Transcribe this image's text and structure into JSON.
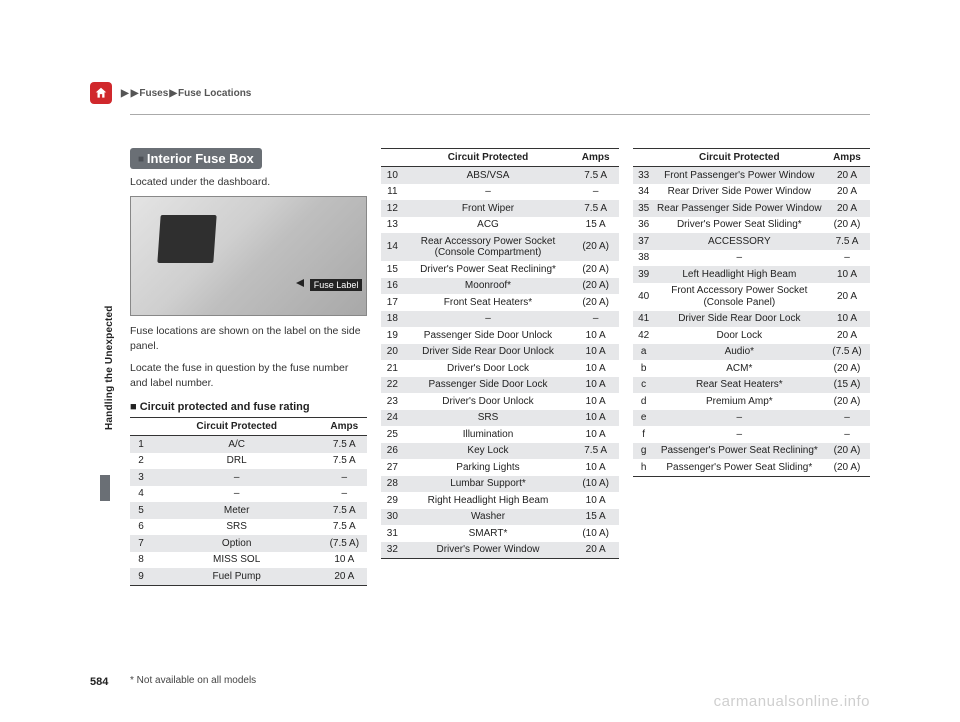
{
  "breadcrumb": {
    "a": "Fuses",
    "b": "Fuse Locations"
  },
  "pageNumber": "584",
  "footnote": "* Not available on all models",
  "watermark": "carmanualsonline.info",
  "sideLabel": "Handling the Unexpected",
  "section": {
    "title": "Interior Fuse Box",
    "located": "Located under the dashboard.",
    "fuseLabel": "Fuse Label",
    "desc1": "Fuse locations are shown on the label on the side panel.",
    "desc2": "Locate the fuse in question by the fuse number and label number.",
    "subheading": "Circuit protected and fuse rating"
  },
  "headers": {
    "circuit": "Circuit Protected",
    "amps": "Amps"
  },
  "table1": [
    {
      "n": "1",
      "c": "A/C",
      "a": "7.5 A"
    },
    {
      "n": "2",
      "c": "DRL",
      "a": "7.5 A"
    },
    {
      "n": "3",
      "c": "–",
      "a": "–"
    },
    {
      "n": "4",
      "c": "–",
      "a": "–"
    },
    {
      "n": "5",
      "c": "Meter",
      "a": "7.5 A"
    },
    {
      "n": "6",
      "c": "SRS",
      "a": "7.5 A"
    },
    {
      "n": "7",
      "c": "Option",
      "a": "(7.5 A)"
    },
    {
      "n": "8",
      "c": "MISS SOL",
      "a": "10 A"
    },
    {
      "n": "9",
      "c": "Fuel Pump",
      "a": "20 A"
    }
  ],
  "table2": [
    {
      "n": "10",
      "c": "ABS/VSA",
      "a": "7.5 A"
    },
    {
      "n": "11",
      "c": "–",
      "a": "–"
    },
    {
      "n": "12",
      "c": "Front Wiper",
      "a": "7.5 A"
    },
    {
      "n": "13",
      "c": "ACG",
      "a": "15 A"
    },
    {
      "n": "14",
      "c": "Rear Accessory Power Socket (Console Compartment)",
      "a": "(20 A)"
    },
    {
      "n": "15",
      "c": "Driver's Power Seat Reclining*",
      "a": "(20 A)"
    },
    {
      "n": "16",
      "c": "Moonroof*",
      "a": "(20 A)"
    },
    {
      "n": "17",
      "c": "Front Seat Heaters*",
      "a": "(20 A)"
    },
    {
      "n": "18",
      "c": "–",
      "a": "–"
    },
    {
      "n": "19",
      "c": "Passenger Side Door Unlock",
      "a": "10 A"
    },
    {
      "n": "20",
      "c": "Driver Side Rear Door Unlock",
      "a": "10 A"
    },
    {
      "n": "21",
      "c": "Driver's Door Lock",
      "a": "10 A"
    },
    {
      "n": "22",
      "c": "Passenger Side Door Lock",
      "a": "10 A"
    },
    {
      "n": "23",
      "c": "Driver's Door Unlock",
      "a": "10 A"
    },
    {
      "n": "24",
      "c": "SRS",
      "a": "10 A"
    },
    {
      "n": "25",
      "c": "Illumination",
      "a": "10 A"
    },
    {
      "n": "26",
      "c": "Key Lock",
      "a": "7.5 A"
    },
    {
      "n": "27",
      "c": "Parking Lights",
      "a": "10 A"
    },
    {
      "n": "28",
      "c": "Lumbar Support*",
      "a": "(10 A)"
    },
    {
      "n": "29",
      "c": "Right Headlight High Beam",
      "a": "10 A"
    },
    {
      "n": "30",
      "c": "Washer",
      "a": "15 A"
    },
    {
      "n": "31",
      "c": "SMART*",
      "a": "(10 A)"
    },
    {
      "n": "32",
      "c": "Driver's Power Window",
      "a": "20 A"
    }
  ],
  "table3": [
    {
      "n": "33",
      "c": "Front Passenger's Power Window",
      "a": "20 A"
    },
    {
      "n": "34",
      "c": "Rear Driver Side Power Window",
      "a": "20 A"
    },
    {
      "n": "35",
      "c": "Rear Passenger Side Power Window",
      "a": "20 A"
    },
    {
      "n": "36",
      "c": "Driver's Power Seat Sliding*",
      "a": "(20 A)"
    },
    {
      "n": "37",
      "c": "ACCESSORY",
      "a": "7.5 A"
    },
    {
      "n": "38",
      "c": "–",
      "a": "–"
    },
    {
      "n": "39",
      "c": "Left Headlight High Beam",
      "a": "10 A"
    },
    {
      "n": "40",
      "c": "Front Accessory Power Socket (Console Panel)",
      "a": "20 A"
    },
    {
      "n": "41",
      "c": "Driver Side Rear Door Lock",
      "a": "10 A"
    },
    {
      "n": "42",
      "c": "Door Lock",
      "a": "20 A"
    },
    {
      "n": "a",
      "c": "Audio*",
      "a": "(7.5 A)"
    },
    {
      "n": "b",
      "c": "ACM*",
      "a": "(20 A)"
    },
    {
      "n": "c",
      "c": "Rear Seat Heaters*",
      "a": "(15 A)"
    },
    {
      "n": "d",
      "c": "Premium Amp*",
      "a": "(20 A)"
    },
    {
      "n": "e",
      "c": "–",
      "a": "–"
    },
    {
      "n": "f",
      "c": "–",
      "a": "–"
    },
    {
      "n": "g",
      "c": "Passenger's Power Seat Reclining*",
      "a": "(20 A)"
    },
    {
      "n": "h",
      "c": "Passenger's Power Seat Sliding*",
      "a": "(20 A)"
    }
  ]
}
